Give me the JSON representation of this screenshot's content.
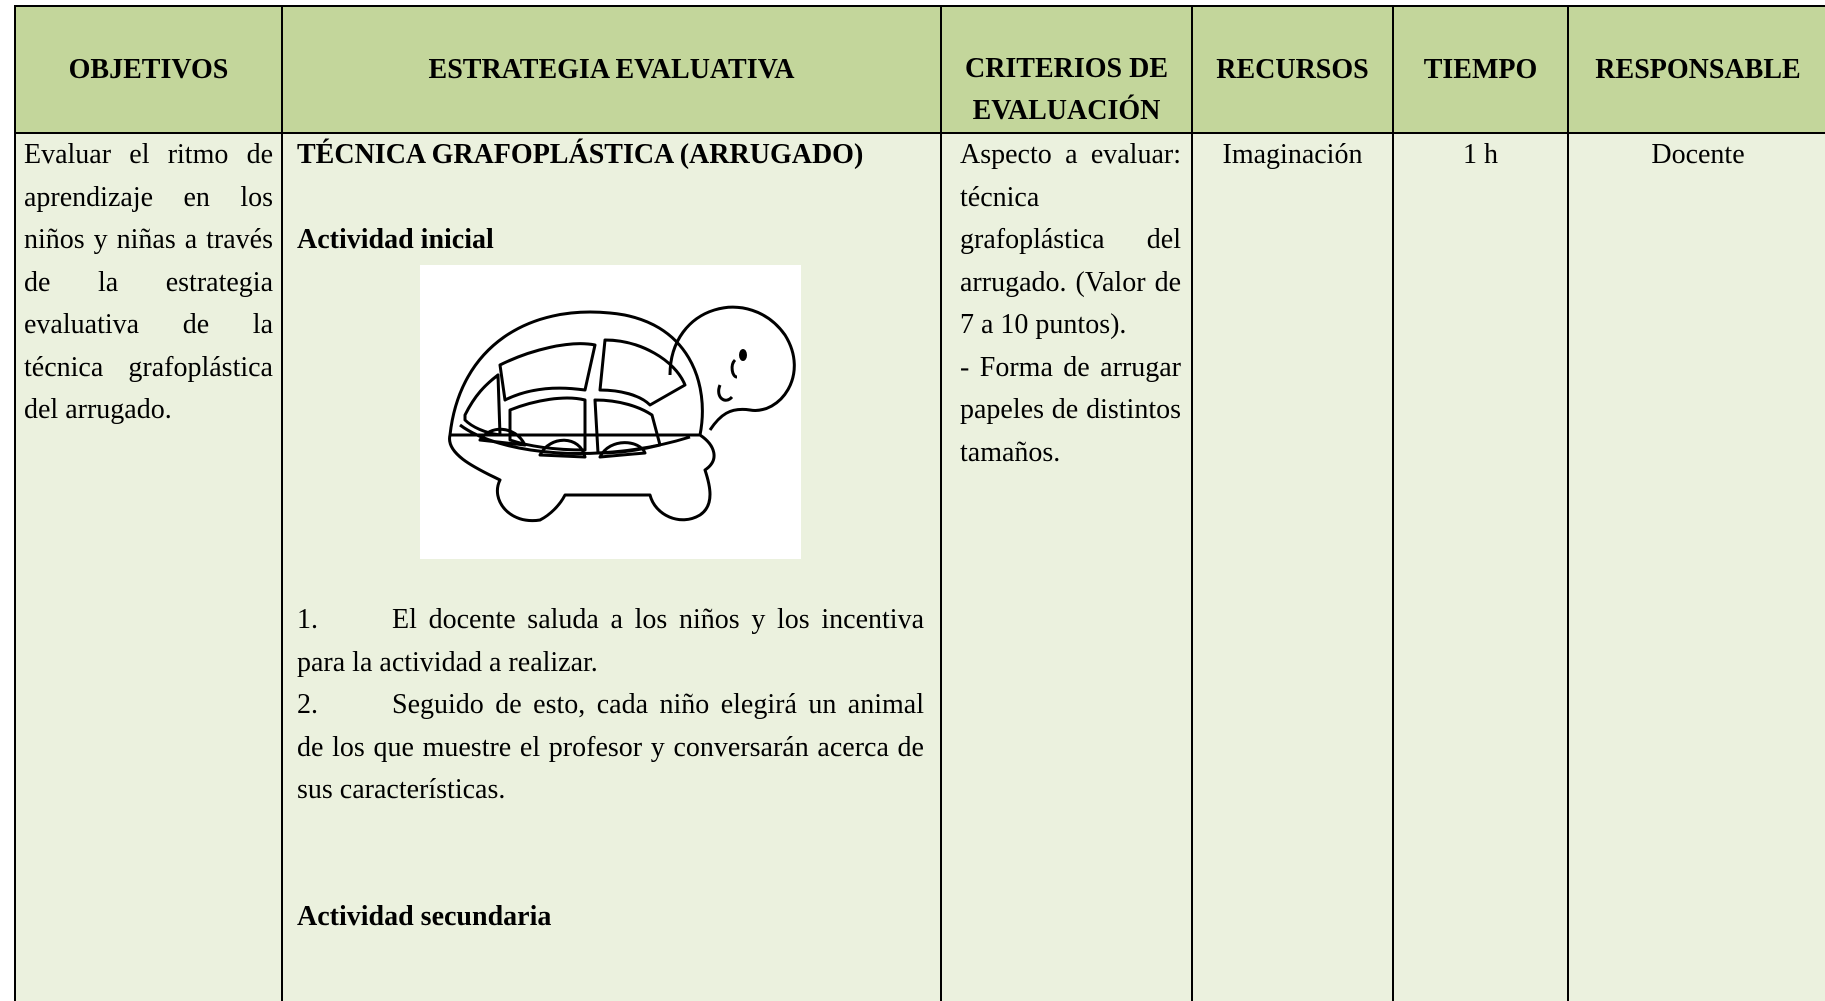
{
  "table": {
    "header": [
      "OBJETIVOS",
      "ESTRATEGIA EVALUATIVA",
      "CRITERIOS DE EVALUACIÓN",
      "RECURSOS",
      "TIEMPO",
      "RESPONSABLE"
    ],
    "objetivos": "Evaluar el ritmo de aprendizaje en los niños y niñas a través de la estrategia evaluativa de la técnica grafoplástica del arrugado.",
    "estrategia": {
      "title": "TÉCNICA GRAFOPLÁSTICA (ARRUGADO)",
      "actividad_inicial": "Actividad inicial",
      "items": [
        {
          "number": "1.",
          "text": "El docente saluda a los niños y los incentiva para la actividad a realizar."
        },
        {
          "number": "2.",
          "text": "Seguido de esto, cada niño elegirá un animal de los que muestre el profesor y conversarán acerca de sus características."
        }
      ],
      "actividad_secundaria": "Actividad secundaria"
    },
    "criterios": [
      "Aspecto a evaluar: técnica grafoplástica del arrugado. (Valor de 7 a 10 puntos).",
      "- Forma de arrugar papeles de distintos tamaños."
    ],
    "recursos": "Imaginación",
    "tiempo": "1 h",
    "responsable": "Docente"
  }
}
